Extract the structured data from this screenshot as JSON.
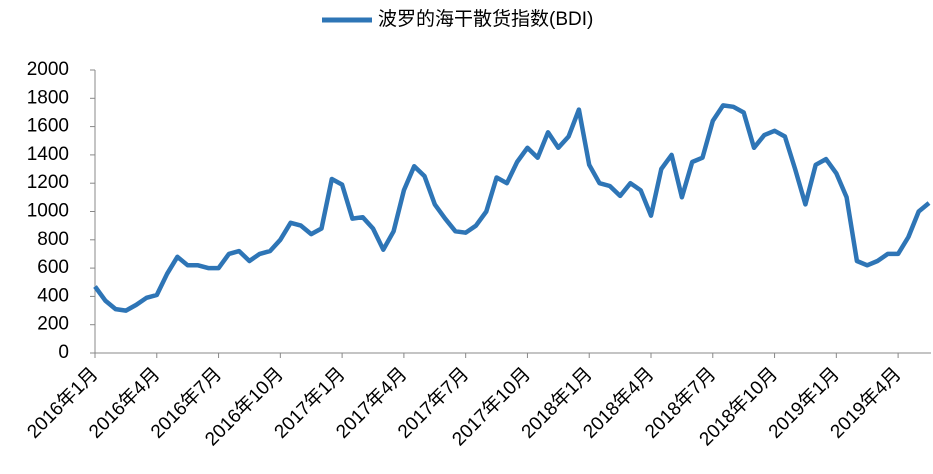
{
  "chart_data": {
    "type": "line",
    "series": [
      {
        "name": "波罗的海干散货指数(BDI)",
        "color": "#2e75b6",
        "values": [
          470,
          370,
          310,
          300,
          340,
          390,
          410,
          560,
          680,
          620,
          620,
          600,
          600,
          700,
          720,
          650,
          700,
          720,
          800,
          920,
          900,
          840,
          880,
          1230,
          1190,
          950,
          960,
          880,
          730,
          860,
          1150,
          1320,
          1250,
          1050,
          950,
          860,
          850,
          900,
          1000,
          1240,
          1200,
          1350,
          1450,
          1380,
          1560,
          1450,
          1530,
          1720,
          1330,
          1200,
          1180,
          1110,
          1200,
          1150,
          970,
          1300,
          1400,
          1100,
          1350,
          1380,
          1640,
          1750,
          1740,
          1700,
          1450,
          1540,
          1570,
          1530,
          1300,
          1050,
          1330,
          1370,
          1270,
          1100,
          650,
          620,
          650,
          700,
          700,
          820,
          1000,
          1060
        ]
      }
    ],
    "categories": [
      "2016年1月",
      null,
      null,
      null,
      null,
      null,
      "2016年4月",
      null,
      null,
      null,
      null,
      null,
      "2016年7月",
      null,
      null,
      null,
      null,
      null,
      "2016年10月",
      null,
      null,
      null,
      null,
      null,
      "2017年1月",
      null,
      null,
      null,
      null,
      null,
      "2017年4月",
      null,
      null,
      null,
      null,
      null,
      "2017年7月",
      null,
      null,
      null,
      null,
      null,
      "2017年10月",
      null,
      null,
      null,
      null,
      null,
      "2018年1月",
      null,
      null,
      null,
      null,
      null,
      "2018年4月",
      null,
      null,
      null,
      null,
      null,
      "2018年7月",
      null,
      null,
      null,
      null,
      null,
      "2018年10月",
      null,
      null,
      null,
      null,
      null,
      "2019年1月",
      null,
      null,
      null,
      null,
      null,
      "2019年4月",
      null,
      null,
      null
    ],
    "ylim": [
      0,
      2000
    ],
    "yticks": [
      0,
      200,
      400,
      600,
      800,
      1000,
      1200,
      1400,
      1600,
      1800,
      2000
    ],
    "grid": false,
    "legend": "top"
  }
}
